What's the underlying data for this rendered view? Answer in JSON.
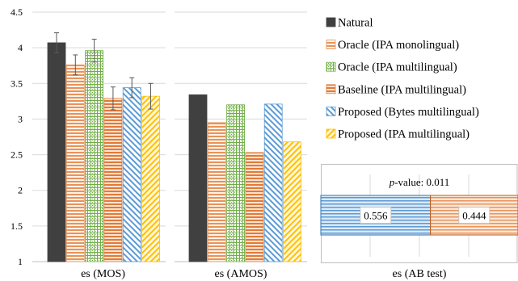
{
  "chart_data": [
    {
      "type": "bar",
      "xlabel": "es (MOS)",
      "ylim": [
        1,
        4.5
      ],
      "yticks": [
        "1",
        "1.5",
        "2",
        "2.5",
        "3",
        "3.5",
        "4",
        "4.5"
      ],
      "grid": true,
      "series": [
        {
          "name": "Natural",
          "value": 4.07,
          "err": 0.14
        },
        {
          "name": "Oracle (IPA monolingual)",
          "value": 3.76,
          "err": 0.14
        },
        {
          "name": "Oracle (IPA multilingual)",
          "value": 3.96,
          "err": 0.16
        },
        {
          "name": "Baseline (IPA multilingual)",
          "value": 3.29,
          "err": 0.16
        },
        {
          "name": "Proposed (Bytes multilingual)",
          "value": 3.44,
          "err": 0.14
        },
        {
          "name": "Proposed (IPA multilingual)",
          "value": 3.32,
          "err": 0.18
        }
      ]
    },
    {
      "type": "bar",
      "xlabel": "es (AMOS)",
      "ylim": [
        1,
        4.5
      ],
      "grid": true,
      "series": [
        {
          "name": "Natural",
          "value": 3.34
        },
        {
          "name": "Oracle (IPA monolingual)",
          "value": 2.95
        },
        {
          "name": "Oracle (IPA multilingual)",
          "value": 3.2
        },
        {
          "name": "Baseline (IPA multilingual)",
          "value": 2.53
        },
        {
          "name": "Proposed (Bytes multilingual)",
          "value": 3.21
        },
        {
          "name": "Proposed (IPA multilingual)",
          "value": 2.68
        }
      ]
    },
    {
      "type": "bar",
      "orientation": "horizontal-stacked",
      "xlabel": "es (AB test)",
      "title_prefix": "p",
      "title_rest": "-value: 0.011",
      "segments": [
        {
          "name": "Proposed (Bytes multilingual)",
          "value": 0.556,
          "label": "0.556"
        },
        {
          "name": "Oracle (IPA monolingual)",
          "value": 0.444,
          "label": "0.444"
        }
      ]
    }
  ],
  "legend": {
    "placement": "right",
    "items": [
      {
        "label": "Natural",
        "pattern": "solid"
      },
      {
        "label": "Oracle (IPA monolingual)",
        "pattern": "orangeStripe"
      },
      {
        "label": "Oracle (IPA multilingual)",
        "pattern": "greenGrid"
      },
      {
        "label": "Baseline (IPA multilingual)",
        "pattern": "redStripe"
      },
      {
        "label": "Proposed (Bytes multilingual)",
        "pattern": "blueStripe"
      },
      {
        "label": "Proposed (IPA multilingual)",
        "pattern": "yellowDiag"
      }
    ]
  },
  "colors": {
    "natural": "#404040",
    "oracle_mono": "#e8935a",
    "oracle_multi": "#70ad47",
    "baseline": "#e07b39",
    "proposed_bytes": "#5b9bd5",
    "proposed_ipa": "#ffc000",
    "grid": "#d9d9d9"
  }
}
